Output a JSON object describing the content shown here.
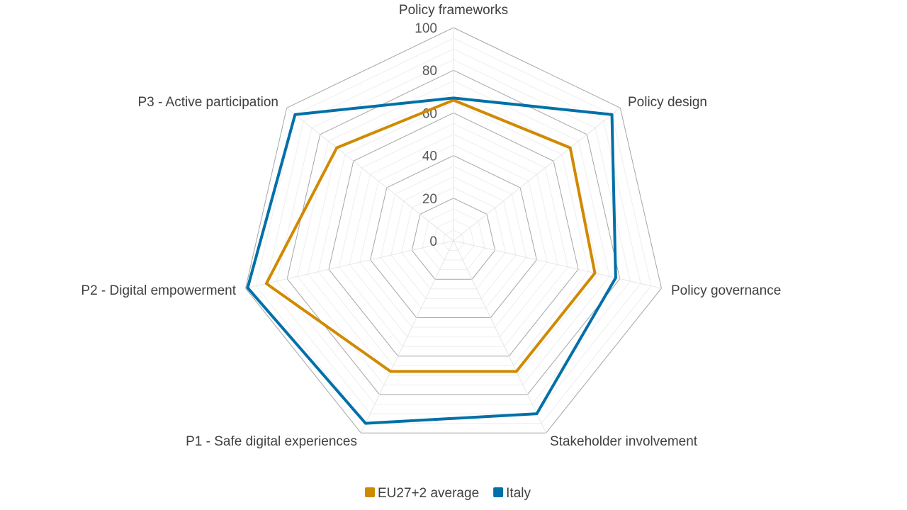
{
  "chart_data": {
    "type": "radar",
    "categories": [
      "Policy frameworks",
      "Policy design",
      "Policy governance",
      "Stakeholder involvement",
      "P1 - Safe digital experiences",
      "P2 - Digital empowerment",
      "P3 - Active participation"
    ],
    "series": [
      {
        "name": "EU27+2 average",
        "color": "#D08A00",
        "values": [
          66,
          70,
          68,
          68,
          68,
          90,
          70
        ]
      },
      {
        "name": "Italy",
        "color": "#0070A8",
        "values": [
          67,
          95,
          78,
          90,
          95,
          99,
          95
        ]
      }
    ],
    "radial_ticks": [
      "0",
      "20",
      "40",
      "60",
      "80",
      "100"
    ],
    "rmin": 0,
    "rmax": 100,
    "major_step": 20,
    "minor_step": 5,
    "grid": true,
    "legend_position": "bottom"
  }
}
